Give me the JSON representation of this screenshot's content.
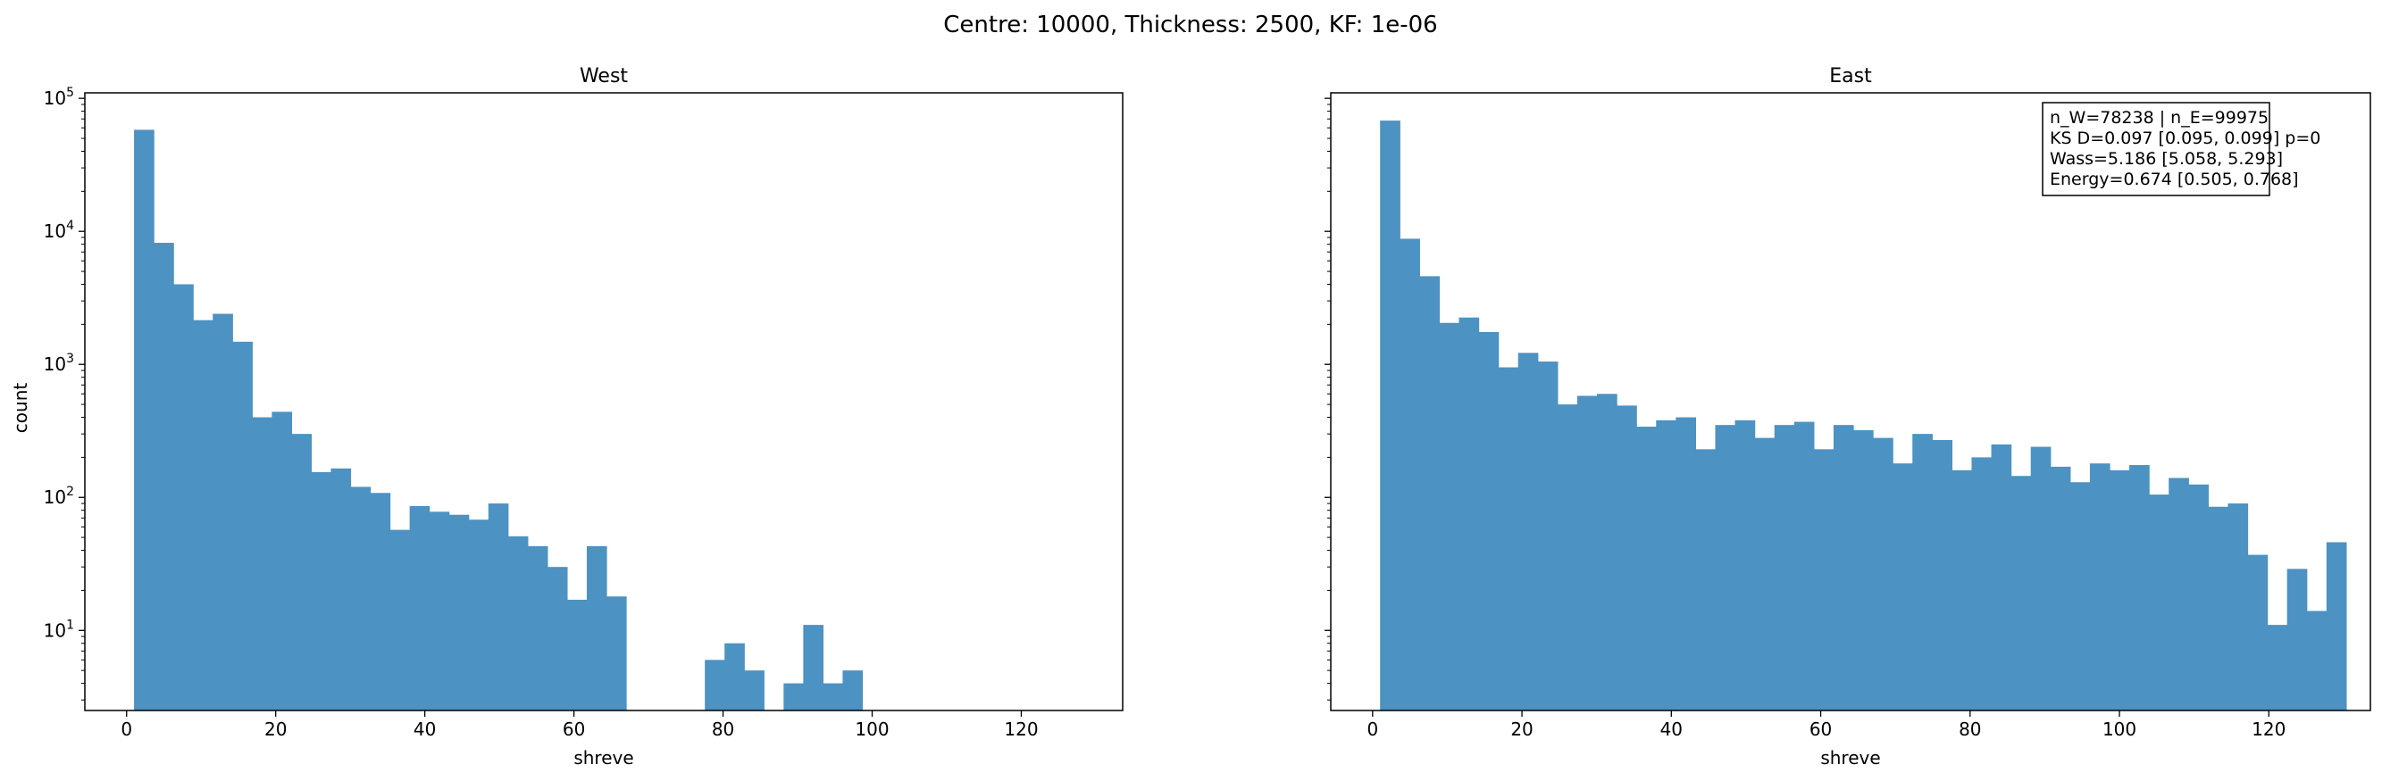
{
  "figure": {
    "suptitle": "Centre: 10000, Thickness: 2500, KF: 1e-06"
  },
  "colors": {
    "bar": "#4c92c3",
    "axis": "#000000",
    "background": "#ffffff"
  },
  "chart_data": [
    {
      "type": "bar",
      "title": "West",
      "xlabel": "shreve",
      "ylabel": "count",
      "xlim": [
        -5.6,
        133.6
      ],
      "ylim": [
        2.5,
        110000
      ],
      "yscale": "log",
      "xticks": [
        0,
        20,
        40,
        60,
        80,
        100,
        120
      ],
      "yticks": [
        "10^1",
        "10^2",
        "10^3",
        "10^4",
        "10^5"
      ],
      "bin_width": 2.64,
      "bin_start": 1,
      "values": [
        58000,
        8200,
        4000,
        2150,
        2400,
        1480,
        400,
        440,
        300,
        155,
        165,
        120,
        108,
        57,
        86,
        78,
        74,
        68,
        90,
        51,
        43,
        30,
        17,
        43,
        18,
        0,
        0,
        0,
        0,
        6,
        8,
        5,
        0,
        4,
        11,
        4,
        5,
        0,
        0,
        0,
        0,
        0,
        0,
        0,
        0,
        0,
        0,
        0,
        0,
        0
      ]
    },
    {
      "type": "bar",
      "title": "East",
      "xlabel": "shreve",
      "ylabel": "",
      "xlim": [
        -5.6,
        133.6
      ],
      "ylim": [
        2.5,
        110000
      ],
      "yscale": "log",
      "xticks": [
        0,
        20,
        40,
        60,
        80,
        100,
        120
      ],
      "bin_width": 2.64,
      "bin_start": 1,
      "values": [
        68000,
        8800,
        4600,
        2050,
        2250,
        1750,
        950,
        1220,
        1050,
        500,
        580,
        600,
        490,
        340,
        380,
        400,
        230,
        350,
        380,
        280,
        350,
        370,
        230,
        350,
        320,
        280,
        180,
        300,
        270,
        160,
        200,
        250,
        145,
        240,
        170,
        130,
        180,
        160,
        175,
        105,
        140,
        125,
        85,
        90,
        37,
        11,
        29,
        14,
        46
      ],
      "annotation": [
        "n_W=78238 | n_E=99975",
        "KS D=0.097 [0.095, 0.099]  p=0",
        "Wass=5.186 [5.058, 5.293]",
        "Energy=0.674 [0.505, 0.768]"
      ]
    }
  ]
}
